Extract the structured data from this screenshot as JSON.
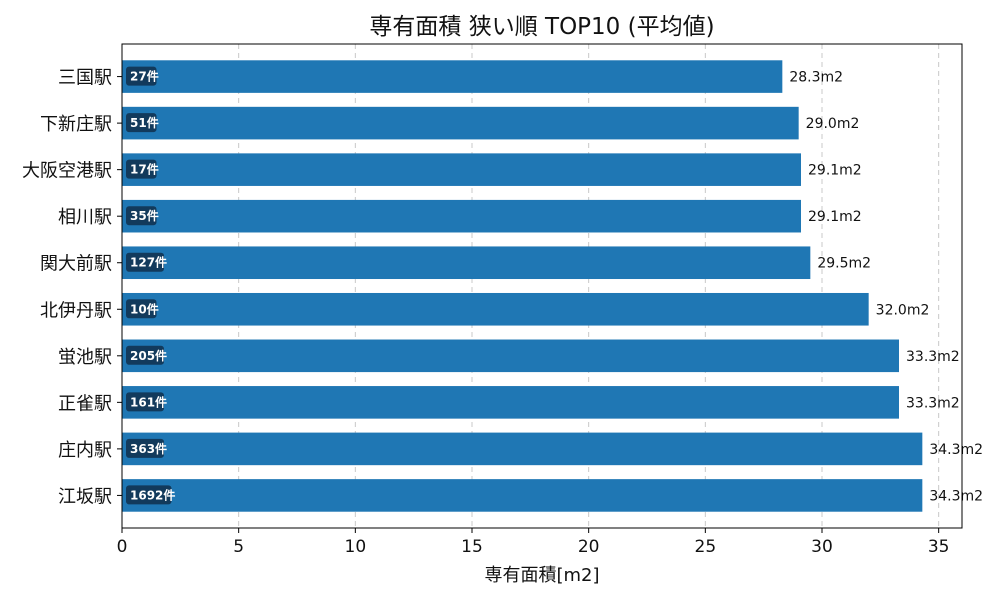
{
  "chart_data": {
    "type": "bar",
    "orientation": "horizontal",
    "title": "専有面積 狭い順 TOP10 (平均値)",
    "xlabel": "専有面積[m2]",
    "ylabel": "",
    "xlim": [
      0,
      36
    ],
    "xticks": [
      "0",
      "5",
      "10",
      "15",
      "20",
      "25",
      "30",
      "35"
    ],
    "grid": "x-dashed",
    "bar_color": "#1f77b4",
    "badge_color": "#123a5c",
    "categories": [
      "三国駅",
      "下新庄駅",
      "大阪空港駅",
      "相川駅",
      "関大前駅",
      "北伊丹駅",
      "蛍池駅",
      "正雀駅",
      "庄内駅",
      "江坂駅"
    ],
    "values": [
      28.3,
      29.0,
      29.1,
      29.1,
      29.5,
      32.0,
      33.3,
      33.3,
      34.3,
      34.3
    ],
    "value_labels": [
      "28.3m2",
      "29.0m2",
      "29.1m2",
      "29.1m2",
      "29.5m2",
      "32.0m2",
      "33.3m2",
      "33.3m2",
      "34.3m2",
      "34.3m2"
    ],
    "counts": [
      "27件",
      "51件",
      "17件",
      "35件",
      "127件",
      "10件",
      "205件",
      "161件",
      "363件",
      "1692件"
    ]
  }
}
